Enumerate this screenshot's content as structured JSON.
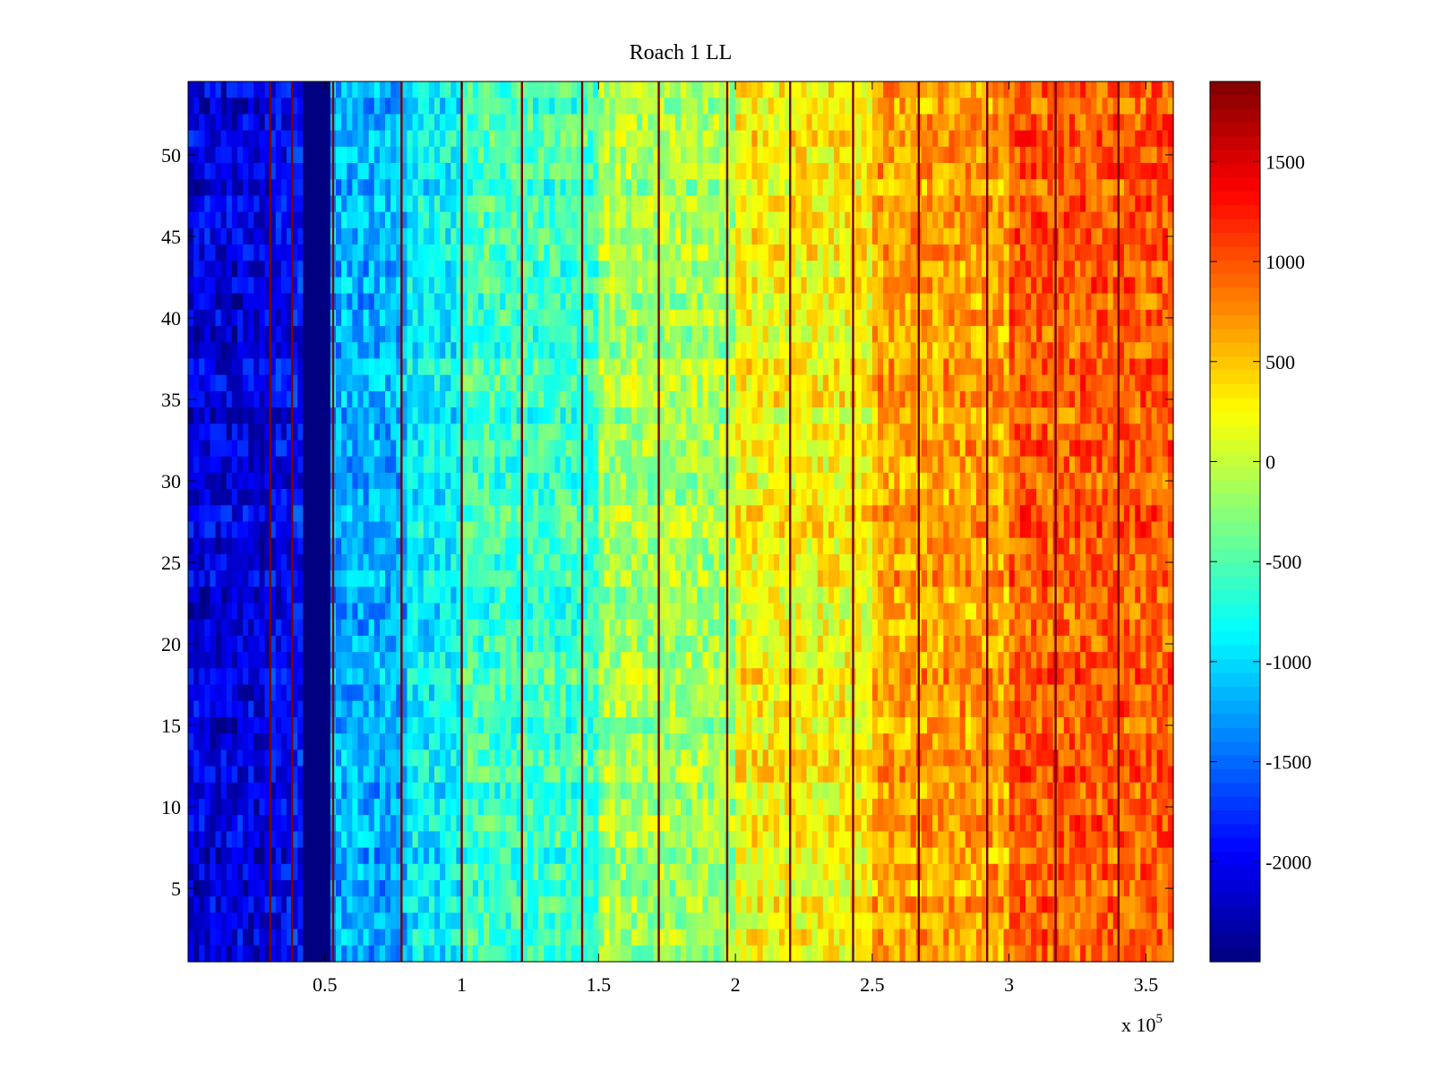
{
  "chart_data": {
    "type": "heatmap",
    "title": "Roach 1 LL",
    "xlabel": "",
    "ylabel": "",
    "x_multiplier_label": "x 10",
    "x_multiplier_exponent": "5",
    "xlim": [
      0,
      3.6
    ],
    "ylim": [
      0.5,
      54.5
    ],
    "x_ticks": [
      0.5,
      1,
      1.5,
      2,
      2.5,
      3,
      3.5
    ],
    "x_tick_labels": [
      "0.5",
      "1",
      "1.5",
      "2",
      "2.5",
      "3",
      "3.5"
    ],
    "y_ticks": [
      5,
      10,
      15,
      20,
      25,
      30,
      35,
      40,
      45,
      50
    ],
    "y_tick_labels": [
      "5",
      "10",
      "15",
      "20",
      "25",
      "30",
      "35",
      "40",
      "45",
      "50"
    ],
    "n_rows": 54,
    "colormap": "jet",
    "colorbar": {
      "clim": [
        -2500,
        1900
      ],
      "ticks": [
        -2000,
        -1500,
        -1000,
        -500,
        0,
        500,
        1000,
        1500
      ],
      "tick_labels": [
        "-2000",
        "-1500",
        "-1000",
        "-500",
        "0",
        "500",
        "1000",
        "1500"
      ]
    },
    "value_trend": {
      "description": "mean value per x-range (x in units of 10^5)",
      "segments": [
        {
          "x_start": 0.0,
          "x_end": 0.3,
          "mean": -2100
        },
        {
          "x_start": 0.3,
          "x_end": 0.38,
          "mean": -2000
        },
        {
          "x_start": 0.43,
          "x_end": 0.53,
          "mean": -2500
        },
        {
          "x_start": 0.53,
          "x_end": 0.8,
          "mean": -1200
        },
        {
          "x_start": 0.8,
          "x_end": 1.0,
          "mean": -900
        },
        {
          "x_start": 1.0,
          "x_end": 1.5,
          "mean": -600
        },
        {
          "x_start": 1.5,
          "x_end": 2.0,
          "mean": -150
        },
        {
          "x_start": 2.0,
          "x_end": 2.5,
          "mean": 250
        },
        {
          "x_start": 2.5,
          "x_end": 3.0,
          "mean": 650
        },
        {
          "x_start": 3.0,
          "x_end": 3.6,
          "mean": 950
        }
      ]
    },
    "spike_columns_x": [
      0.3,
      0.38,
      0.53,
      0.78,
      1.0,
      1.22,
      1.44,
      1.72,
      1.97,
      2.2,
      2.43,
      2.67,
      2.92,
      3.17,
      3.4
    ]
  }
}
